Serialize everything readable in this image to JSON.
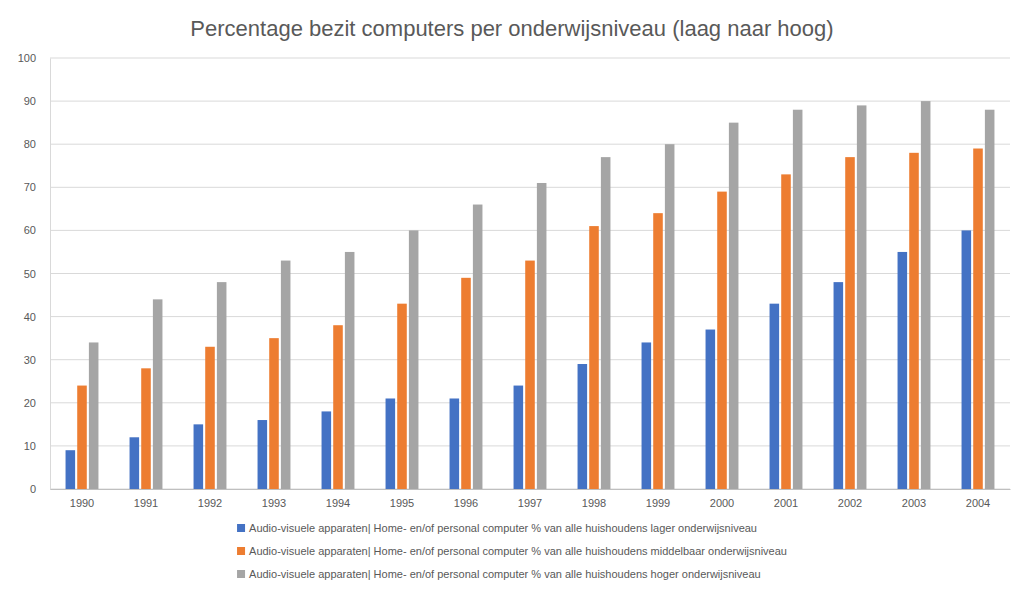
{
  "chart_data": {
    "type": "bar",
    "title": "Percentage bezit computers per onderwijsniveau (laag naar hoog)",
    "categories": [
      "1990",
      "1991",
      "1992",
      "1993",
      "1994",
      "1995",
      "1996",
      "1997",
      "1998",
      "1999",
      "2000",
      "2001",
      "2002",
      "2003",
      "2004"
    ],
    "series": [
      {
        "name": "Audio-visuele apparaten| Home- en/of personal computer % van alle huishoudens lager onderwijsniveau",
        "color": "#4472c4",
        "values": [
          9,
          12,
          15,
          16,
          18,
          21,
          21,
          24,
          29,
          34,
          37,
          43,
          48,
          55,
          60
        ]
      },
      {
        "name": "Audio-visuele apparaten| Home- en/of personal computer % van alle huishoudens middelbaar onderwijsniveau",
        "color": "#ed7d31",
        "values": [
          24,
          28,
          33,
          35,
          38,
          43,
          49,
          53,
          61,
          64,
          69,
          73,
          77,
          78,
          79
        ]
      },
      {
        "name": "Audio-visuele apparaten| Home- en/of personal computer % van alle huishoudens hoger onderwijsniveau",
        "color": "#a5a5a5",
        "values": [
          34,
          44,
          48,
          53,
          55,
          60,
          66,
          71,
          77,
          80,
          85,
          88,
          89,
          90,
          88
        ]
      }
    ],
    "ylim": [
      0,
      100
    ],
    "yticks": [
      0,
      10,
      20,
      30,
      40,
      50,
      60,
      70,
      80,
      90,
      100
    ],
    "grid": true,
    "legend": "bottom"
  }
}
